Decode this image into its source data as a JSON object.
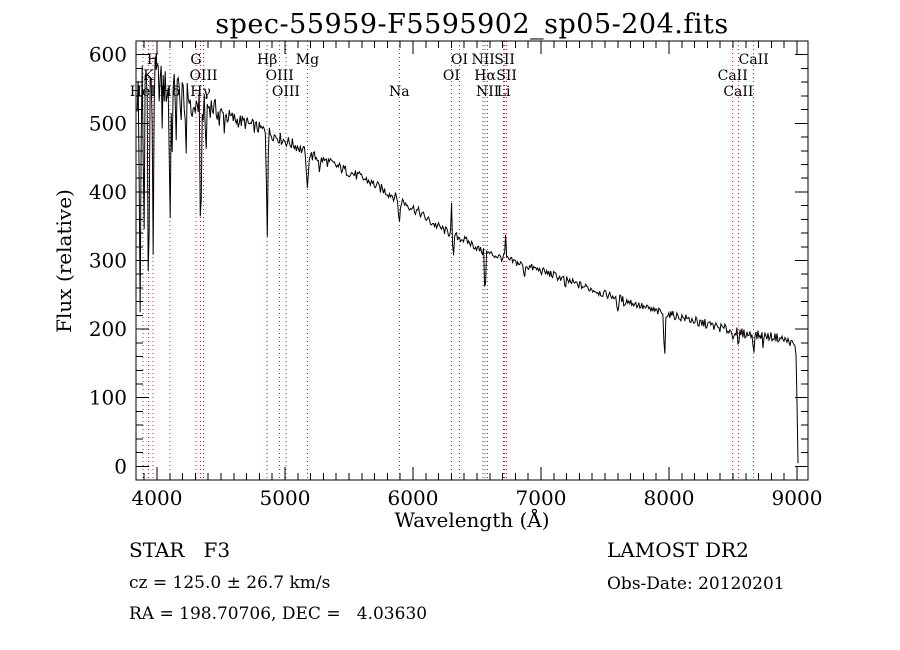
{
  "header": {
    "title": "spec-55959-F5595902_sp05-204.fits"
  },
  "axes": {
    "xlabel": "Wavelength (Å)",
    "ylabel": "Flux (relative)"
  },
  "footer": {
    "class_label": "STAR   F3",
    "cz": "cz = 125.0 ± 26.7 km/s",
    "radec": "RA = 198.70706, DEC =   4.03630",
    "release": "LAMOST DR2",
    "obs_date": "Obs-Date: 20120201"
  },
  "colors": {
    "spectrum": "#000000",
    "line_marker": "#993333",
    "background": "#ffffff",
    "text": "#000000"
  },
  "chart_data": {
    "type": "line",
    "title": "spec-55959-F5595902_sp05-204.fits",
    "xlabel": "Wavelength (Å)",
    "ylabel": "Flux (relative)",
    "xlim": [
      3836,
      9086
    ],
    "ylim": [
      -20,
      620
    ],
    "xticks": [
      4000,
      5000,
      6000,
      7000,
      8000,
      9000
    ],
    "yticks": [
      0,
      100,
      200,
      300,
      400,
      500,
      600
    ],
    "x_minor_step": 100,
    "y_minor_step": 20,
    "grid": false,
    "legend": "none",
    "data_range": [
      3845,
      9008
    ],
    "continuum_points": [
      [
        3845,
        540
      ],
      [
        3880,
        560
      ],
      [
        3930,
        575
      ],
      [
        3970,
        568
      ],
      [
        4010,
        562
      ],
      [
        4060,
        552
      ],
      [
        4110,
        545
      ],
      [
        4160,
        548
      ],
      [
        4210,
        542
      ],
      [
        4260,
        535
      ],
      [
        4310,
        528
      ],
      [
        4360,
        522
      ],
      [
        4420,
        526
      ],
      [
        4480,
        516
      ],
      [
        4550,
        510
      ],
      [
        4620,
        505
      ],
      [
        4700,
        500
      ],
      [
        4780,
        494
      ],
      [
        4861,
        488
      ],
      [
        4940,
        480
      ],
      [
        5020,
        473
      ],
      [
        5100,
        466
      ],
      [
        5175,
        455
      ],
      [
        5250,
        450
      ],
      [
        5330,
        444
      ],
      [
        5410,
        437
      ],
      [
        5490,
        430
      ],
      [
        5570,
        423
      ],
      [
        5650,
        416
      ],
      [
        5730,
        407
      ],
      [
        5810,
        398
      ],
      [
        5893,
        389
      ],
      [
        5970,
        380
      ],
      [
        6050,
        370
      ],
      [
        6130,
        357
      ],
      [
        6210,
        348
      ],
      [
        6300,
        338
      ],
      [
        6380,
        332
      ],
      [
        6460,
        324
      ],
      [
        6540,
        313
      ],
      [
        6600,
        310
      ],
      [
        6680,
        305
      ],
      [
        6760,
        300
      ],
      [
        6840,
        295
      ],
      [
        6920,
        290
      ],
      [
        7000,
        285
      ],
      [
        7080,
        280
      ],
      [
        7160,
        274
      ],
      [
        7240,
        268
      ],
      [
        7320,
        263
      ],
      [
        7400,
        258
      ],
      [
        7480,
        252
      ],
      [
        7560,
        248
      ],
      [
        7640,
        243
      ],
      [
        7720,
        238
      ],
      [
        7800,
        232
      ],
      [
        7880,
        227
      ],
      [
        7960,
        223
      ],
      [
        8040,
        220
      ],
      [
        8120,
        216
      ],
      [
        8200,
        212
      ],
      [
        8280,
        208
      ],
      [
        8360,
        204
      ],
      [
        8440,
        200
      ],
      [
        8520,
        196
      ],
      [
        8600,
        193
      ],
      [
        8680,
        191
      ],
      [
        8760,
        190
      ],
      [
        8840,
        188
      ],
      [
        8910,
        184
      ],
      [
        8960,
        180
      ],
      [
        8990,
        174
      ],
      [
        8998,
        130
      ],
      [
        9002,
        60
      ],
      [
        9008,
        5
      ]
    ],
    "noise_profile": [
      [
        3845,
        36
      ],
      [
        3950,
        34
      ],
      [
        4050,
        30
      ],
      [
        4200,
        26
      ],
      [
        4350,
        22
      ],
      [
        4500,
        13
      ],
      [
        4700,
        10
      ],
      [
        4900,
        9
      ],
      [
        5200,
        8
      ],
      [
        5600,
        7.5
      ],
      [
        6000,
        7
      ],
      [
        6400,
        6
      ],
      [
        6800,
        5.5
      ],
      [
        7200,
        6
      ],
      [
        7600,
        5.5
      ],
      [
        8000,
        6
      ],
      [
        8400,
        7
      ],
      [
        8700,
        7
      ],
      [
        8950,
        6
      ],
      [
        8995,
        2
      ],
      [
        9008,
        1
      ]
    ],
    "absorption_lines": [
      [
        3868,
        222,
        10
      ],
      [
        3898,
        328,
        9
      ],
      [
        3934,
        236,
        10
      ],
      [
        3970,
        308,
        9
      ],
      [
        4102,
        356,
        10
      ],
      [
        4227,
        452,
        9
      ],
      [
        4341,
        334,
        10
      ],
      [
        4383,
        458,
        9
      ],
      [
        4861,
        331,
        10
      ],
      [
        5175,
        406,
        13
      ],
      [
        5270,
        428,
        9
      ],
      [
        5893,
        355,
        12
      ],
      [
        6315,
        304,
        8
      ],
      [
        6563,
        251,
        10
      ],
      [
        6870,
        274,
        9
      ],
      [
        7190,
        260,
        10
      ],
      [
        7600,
        226,
        14
      ],
      [
        7650,
        232,
        10
      ],
      [
        7965,
        155,
        9
      ],
      [
        8230,
        202,
        8
      ],
      [
        8498,
        185,
        9
      ],
      [
        8542,
        175,
        10
      ],
      [
        8662,
        164,
        10
      ],
      [
        8735,
        172,
        8
      ]
    ],
    "emission_spikes": [
      [
        6301,
        384,
        8
      ],
      [
        6723,
        338,
        8
      ]
    ],
    "spectral_lines": [
      {
        "label": "HeI",
        "wavelength": 3889,
        "row": 3
      },
      {
        "label": "K",
        "wavelength": 3934,
        "row": 2
      },
      {
        "label": "H",
        "wavelength": 3969,
        "row": 1
      },
      {
        "label": "Hδ",
        "wavelength": 4102,
        "row": 3
      },
      {
        "label": "G",
        "wavelength": 4305,
        "row": 1
      },
      {
        "label": "Hγ",
        "wavelength": 4341,
        "row": 3
      },
      {
        "label": "OIII",
        "wavelength": 4363,
        "row": 2
      },
      {
        "label": "Hβ",
        "wavelength": 4861,
        "row": 1
      },
      {
        "label": "OIII",
        "wavelength": 4959,
        "row": 2
      },
      {
        "label": "OIII",
        "wavelength": 5007,
        "row": 3
      },
      {
        "label": "Mg",
        "wavelength": 5175,
        "row": 1
      },
      {
        "label": "Na",
        "wavelength": 5893,
        "row": 3
      },
      {
        "label": "OI",
        "wavelength": 6300,
        "row": 2
      },
      {
        "label": "OI",
        "wavelength": 6363,
        "row": 1
      },
      {
        "label": "NII",
        "wavelength": 6548,
        "row": 1
      },
      {
        "label": "Hα",
        "wavelength": 6563,
        "row": 2
      },
      {
        "label": "NII",
        "wavelength": 6583,
        "row": 3
      },
      {
        "label": "Li",
        "wavelength": 6708,
        "row": 3
      },
      {
        "label": "SII",
        "wavelength": 6716,
        "row": 1
      },
      {
        "label": "SII",
        "wavelength": 6731,
        "row": 2
      },
      {
        "label": "CaII",
        "wavelength": 8498,
        "row": 2
      },
      {
        "label": "CaII",
        "wavelength": 8542,
        "row": 3
      },
      {
        "label": "CaII",
        "wavelength": 8662,
        "row": 1
      }
    ]
  }
}
